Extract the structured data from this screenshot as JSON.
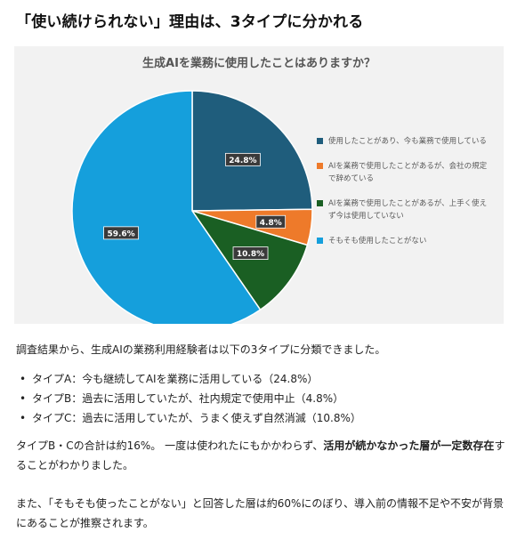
{
  "heading": "「使い続けられない」理由は、3タイプに分かれる",
  "chart_data": {
    "type": "pie",
    "title": "生成AIを業務に使用したことはありますか？",
    "slices": [
      {
        "label": "使用したことがあり、今も業務で使用している",
        "value": 24.8,
        "display": "24.8%",
        "color": "#1f5d7c"
      },
      {
        "label": "AIを業務で使用したことがあるが、会社の規定で辞めている",
        "value": 4.8,
        "display": "4.8%",
        "color": "#ee7a2a"
      },
      {
        "label": "AIを業務で使用したことがあるが、上手く使えず今は使用していない",
        "value": 10.8,
        "display": "10.8%",
        "color": "#1a5f23"
      },
      {
        "label": "そもそも使用したことがない",
        "value": 59.6,
        "display": "59.6%",
        "color": "#159fdc"
      }
    ],
    "legend_position": "right",
    "legend_lines": [
      [
        "使用したことがあり、今も業務で使用している"
      ],
      [
        "AIを業務で使用したことがあるが、会社の規定",
        "で辞めている"
      ],
      [
        "AIを業務で使用したことがあるが、上手く使え",
        "ず今は使用していない"
      ],
      [
        "そもそも使用したことがない"
      ]
    ]
  },
  "article": {
    "intro": "調査結果から、生成AIの業務利用経験者は以下の3タイプに分類できました。",
    "bullet_symbol": "•",
    "bullets": [
      "タイプA：今も継続してAIを業務に活用している（24.8%）",
      "タイプB：過去に活用していたが、社内規定で使用中止（4.8%）",
      "タイプC：過去に活用していたが、うまく使えず自然消滅（10.8%）"
    ],
    "summary_before": "タイプB・Cの合計は約16%。 一度は使われたにもかかわらず、",
    "summary_bold": "活用が続かなかった層が一定数存在",
    "summary_after": "す",
    "summary_line2": "ることがわかりました。",
    "conclusion_line1": "また、「そもそも使ったことがない」と回答した層は約60%にのぼり、導入前の情報不足や不安が背景",
    "conclusion_line2": "にあることが推察されます。"
  }
}
